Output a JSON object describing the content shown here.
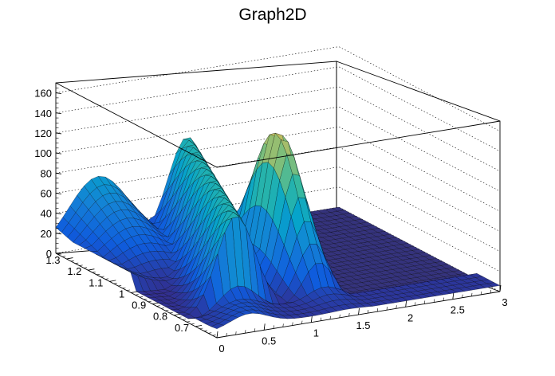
{
  "chart_data": {
    "type": "surface",
    "title": "Graph2D",
    "xlabel": "",
    "ylabel": "",
    "zlabel": "",
    "xlim": [
      0,
      3
    ],
    "ylim": [
      0.6,
      1.35
    ],
    "zlim": [
      0,
      170
    ],
    "x_ticks": [
      "0",
      "0.5",
      "1",
      "1.5",
      "2",
      "2.5",
      "3"
    ],
    "y_ticks": [
      "0.7",
      "0.8",
      "0.9",
      "1",
      "1.1",
      "1.2",
      "1.3"
    ],
    "z_ticks": [
      "0",
      "20",
      "40",
      "60",
      "80",
      "100",
      "120",
      "140",
      "160"
    ],
    "grid": true,
    "colormap": "viridis",
    "colors": {
      "low": "#352a87",
      "mid": "#21a19b",
      "high": "#f9fb0e",
      "floor": "#35337d"
    },
    "sample_points": [
      {
        "x": 0.0,
        "y": 1.3,
        "z": 14
      },
      {
        "x": 0.0,
        "y": 1.0,
        "z": 0
      },
      {
        "x": 0.5,
        "y": 1.3,
        "z": 65
      },
      {
        "x": 1.0,
        "y": 1.3,
        "z": 30
      },
      {
        "x": 1.2,
        "y": 0.95,
        "z": 105
      },
      {
        "x": 1.3,
        "y": 0.85,
        "z": 125
      },
      {
        "x": 1.4,
        "y": 0.95,
        "z": 145
      },
      {
        "x": 1.45,
        "y": 1.0,
        "z": 138
      },
      {
        "x": 1.5,
        "y": 0.9,
        "z": 60
      },
      {
        "x": 2.0,
        "y": 0.9,
        "z": 0
      },
      {
        "x": 3.0,
        "y": 1.0,
        "z": 0
      }
    ]
  }
}
